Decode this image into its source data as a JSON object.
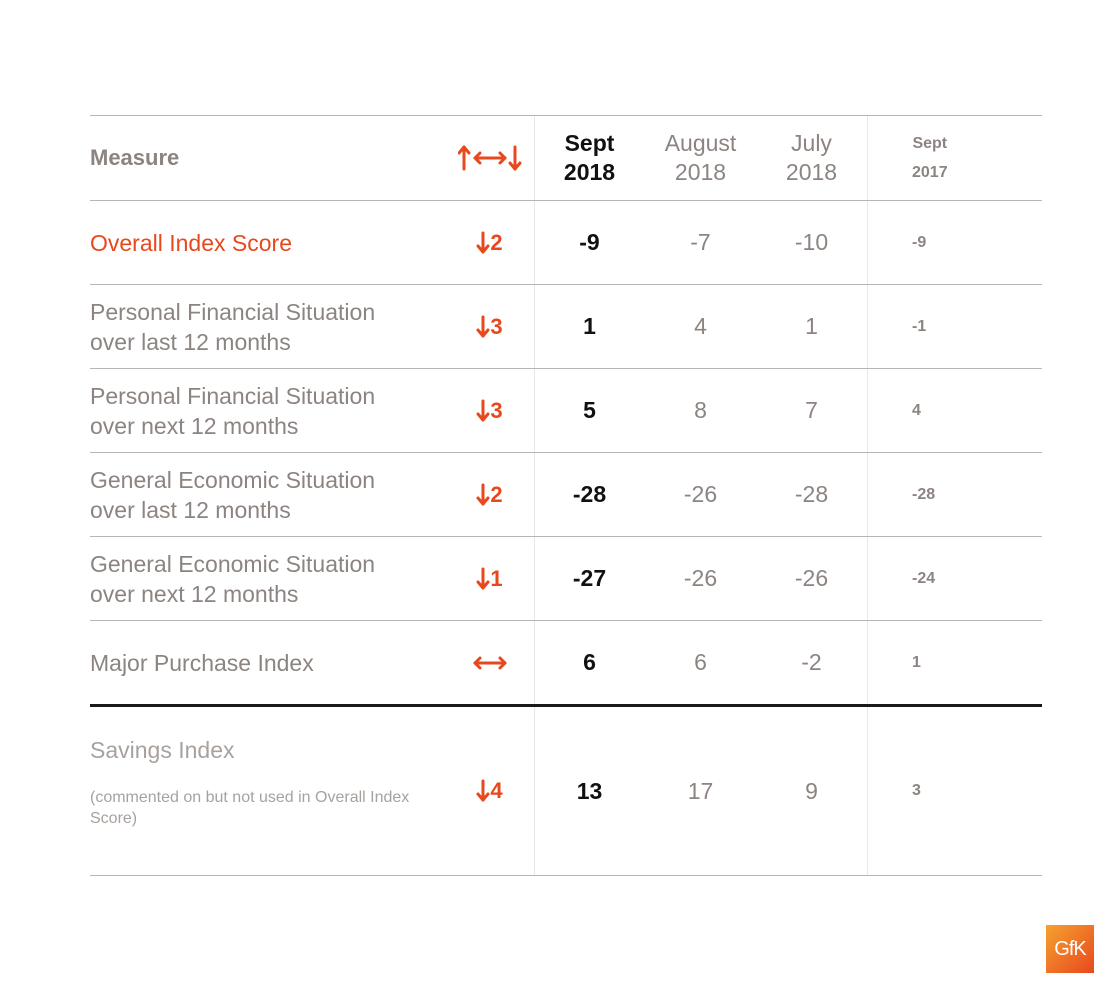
{
  "header": {
    "measure": "Measure",
    "change_icon": "up-down-both-arrows-icon",
    "columns": [
      {
        "line1": "Sept",
        "line2": "2018"
      },
      {
        "line1": "August",
        "line2": "2018"
      },
      {
        "line1": "July",
        "line2": "2018"
      },
      {
        "line1": "Sept",
        "line2": "2017"
      }
    ]
  },
  "rows": [
    {
      "measure": "Overall Index Score",
      "change": "2",
      "direction": "down",
      "values": [
        "-9",
        "-7",
        "-10",
        "-9"
      ]
    },
    {
      "measure_line1": "Personal Financial Situation",
      "measure_line2": "over last 12 months",
      "change": "3",
      "direction": "down",
      "values": [
        "1",
        "4",
        "1",
        "-1"
      ]
    },
    {
      "measure_line1": "Personal Financial Situation",
      "measure_line2": "over next 12 months",
      "change": "3",
      "direction": "down",
      "values": [
        "5",
        "8",
        "7",
        "4"
      ]
    },
    {
      "measure_line1": "General Economic Situation",
      "measure_line2": "over last 12 months",
      "change": "2",
      "direction": "down",
      "values": [
        "-28",
        "-26",
        "-28",
        "-28"
      ]
    },
    {
      "measure_line1": "General Economic Situation",
      "measure_line2": "over next 12 months",
      "change": "1",
      "direction": "down",
      "values": [
        "-27",
        "-26",
        "-26",
        "-24"
      ]
    },
    {
      "measure": "Major Purchase Index",
      "change": "",
      "direction": "unchanged",
      "values": [
        "6",
        "6",
        "-2",
        "1"
      ]
    }
  ],
  "savings": {
    "measure": "Savings Index",
    "note": "(commented on but not used in Overall Index Score)",
    "change": "4",
    "direction": "down",
    "values": [
      "13",
      "17",
      "9",
      "3"
    ]
  },
  "logo": {
    "text": "GfK",
    "colors": [
      "#f6a12f",
      "#e8481e"
    ]
  },
  "colors": {
    "accent": "#e8481e",
    "muted": "#8c8480",
    "strong": "#111111"
  }
}
